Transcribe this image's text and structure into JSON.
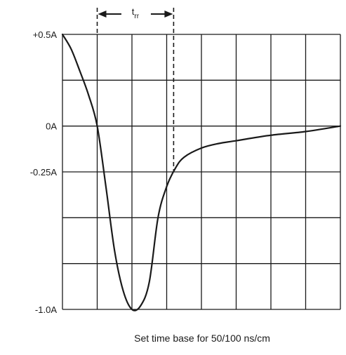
{
  "chart_data": {
    "type": "line",
    "x_unit_label": "cm",
    "xlim": [
      0,
      8
    ],
    "ylim": [
      -1.0,
      0.5
    ],
    "y_tick_labels": [
      {
        "value": 0.5,
        "label": "+0.5A"
      },
      {
        "value": 0.0,
        "label": "0A"
      },
      {
        "value": -0.25,
        "label": "-0.25A"
      },
      {
        "value": -1.0,
        "label": "-1.0A"
      }
    ],
    "grid": true,
    "grid_divisions": {
      "x": 8,
      "y": 6
    },
    "series": [
      {
        "values": [
          {
            "x": 0.0,
            "y": 0.5
          },
          {
            "x": 0.25,
            "y": 0.42
          },
          {
            "x": 0.5,
            "y": 0.3
          },
          {
            "x": 0.75,
            "y": 0.17
          },
          {
            "x": 1.0,
            "y": 0.0
          },
          {
            "x": 1.25,
            "y": -0.33
          },
          {
            "x": 1.5,
            "y": -0.68
          },
          {
            "x": 1.75,
            "y": -0.9
          },
          {
            "x": 2.0,
            "y": -1.0
          },
          {
            "x": 2.25,
            "y": -0.98
          },
          {
            "x": 2.5,
            "y": -0.85
          },
          {
            "x": 2.75,
            "y": -0.5
          },
          {
            "x": 3.0,
            "y": -0.33
          },
          {
            "x": 3.25,
            "y": -0.23
          },
          {
            "x": 3.5,
            "y": -0.17
          },
          {
            "x": 4.0,
            "y": -0.12
          },
          {
            "x": 4.5,
            "y": -0.095
          },
          {
            "x": 5.0,
            "y": -0.08
          },
          {
            "x": 6.0,
            "y": -0.05
          },
          {
            "x": 7.0,
            "y": -0.03
          },
          {
            "x": 8.0,
            "y": 0.0
          }
        ]
      }
    ],
    "annotation": {
      "label_main": "t",
      "label_sub": "rr",
      "x_start": 1.0,
      "x_end": 3.2
    },
    "caption": "Set time base for 50/100 ns/cm"
  }
}
